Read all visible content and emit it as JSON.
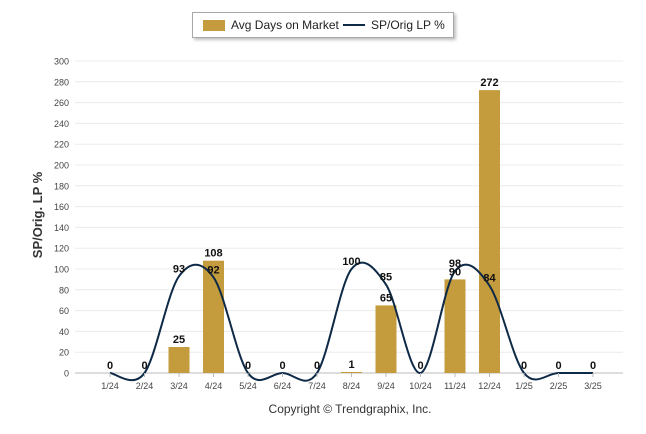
{
  "chart_data": {
    "type": "bar",
    "categories": [
      "1/24",
      "2/24",
      "3/24",
      "4/24",
      "5/24",
      "6/24",
      "7/24",
      "8/24",
      "9/24",
      "10/24",
      "11/24",
      "12/24",
      "1/25",
      "2/25",
      "3/25"
    ],
    "series": [
      {
        "name": "Avg Days on Market",
        "type": "bar",
        "color": "#c49b3d",
        "values": [
          0,
          0,
          25,
          108,
          0,
          0,
          0,
          1,
          65,
          0,
          90,
          272,
          0,
          0,
          0
        ],
        "labels": [
          "0",
          "0",
          "25",
          "108",
          "0",
          "0",
          "0",
          "1",
          "65",
          "0",
          "90",
          "272",
          "0",
          "0",
          "0"
        ]
      },
      {
        "name": "SP/Orig LP %",
        "type": "line",
        "color": "#0e2a47",
        "values": [
          0,
          0,
          93,
          92,
          0,
          0,
          0,
          100,
          85,
          0,
          98,
          84,
          0,
          0,
          0
        ],
        "labels": [
          null,
          null,
          "93",
          "92",
          null,
          null,
          null,
          "100",
          "85",
          null,
          "98",
          "84",
          null,
          null,
          null
        ]
      }
    ],
    "ylabel": "SP/Orig. LP %",
    "ylim": [
      0,
      300
    ],
    "yticks": [
      0,
      20,
      40,
      60,
      80,
      100,
      120,
      140,
      160,
      180,
      200,
      220,
      240,
      260,
      280,
      300
    ],
    "grid": true,
    "legend_position": "top-center"
  },
  "legend": {
    "bar_label": "Avg Days on Market",
    "line_label": "SP/Orig LP %"
  },
  "footer": {
    "copyright": "Copyright © Trendgraphix, Inc."
  }
}
